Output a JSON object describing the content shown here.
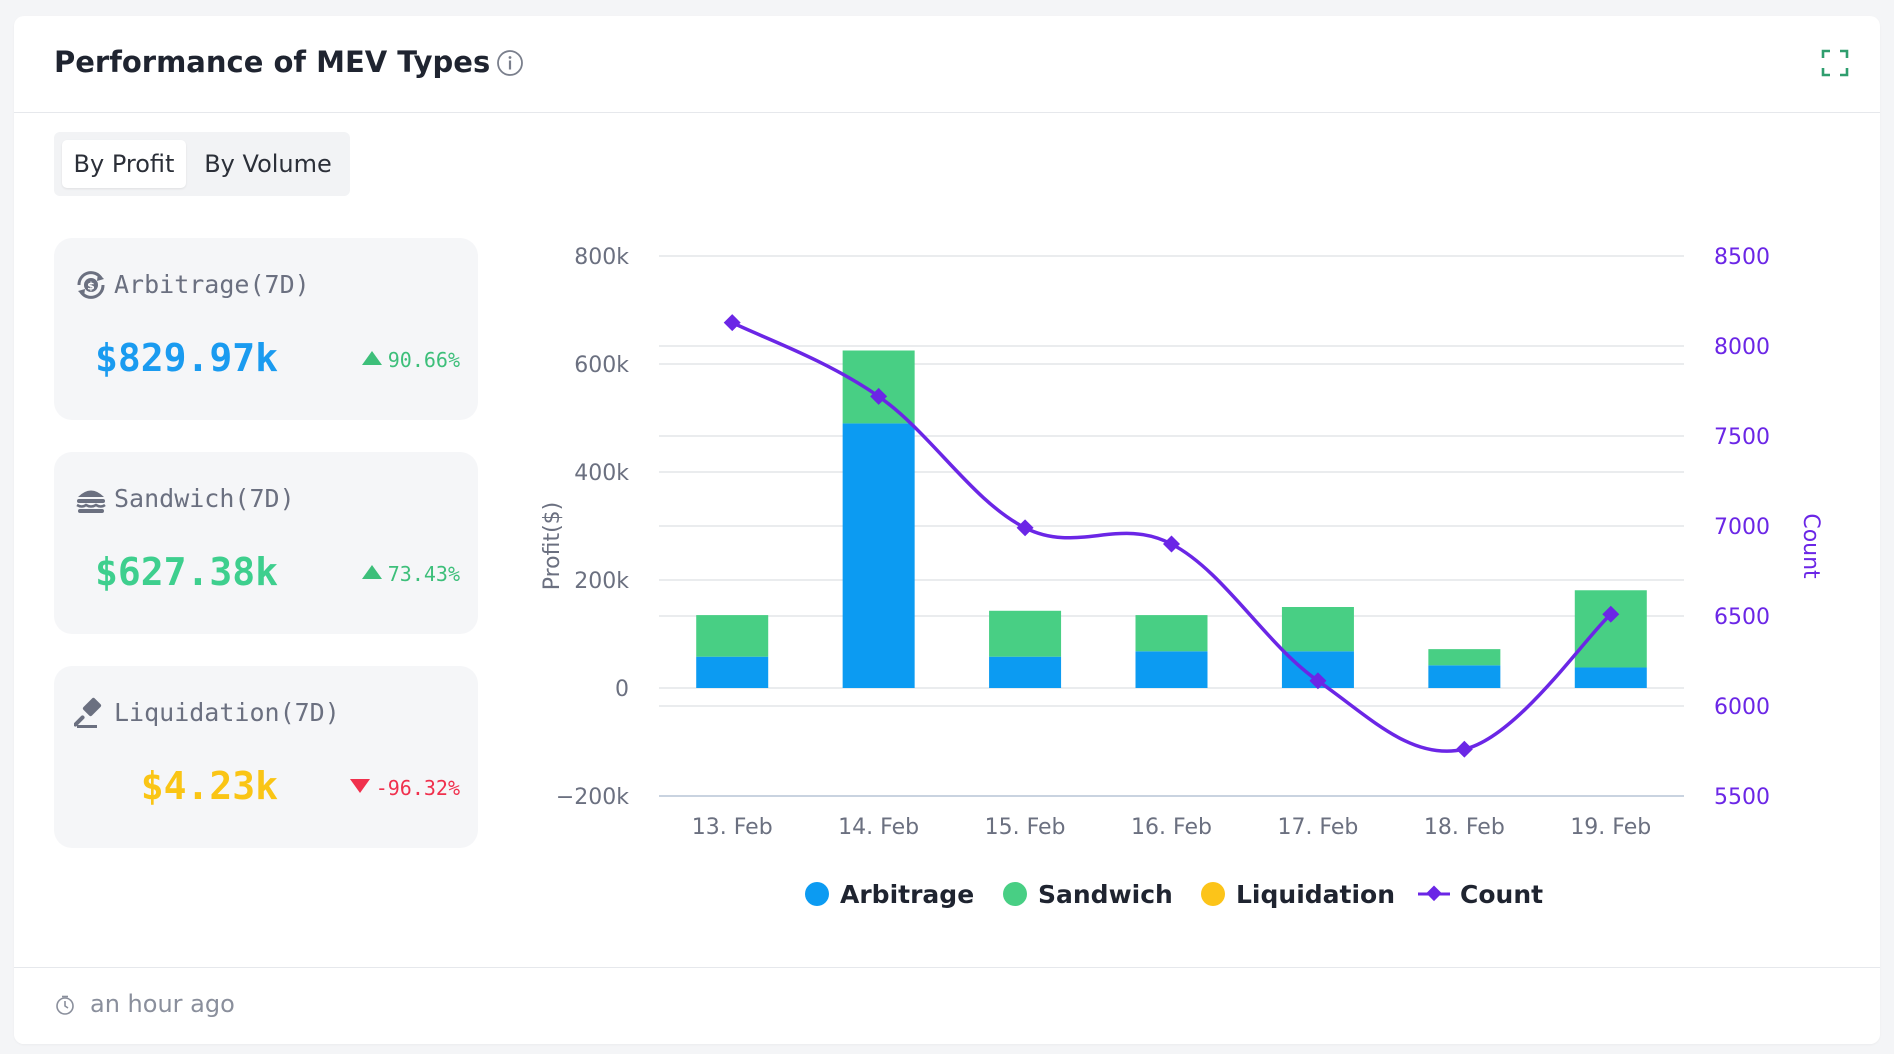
{
  "header": {
    "title": "Performance of MEV Types"
  },
  "toggle": {
    "options": [
      "By Profit",
      "By Volume"
    ],
    "selected": "By Profit"
  },
  "stats": [
    {
      "label": "Arbitrage(7D)",
      "value": "$829.97k",
      "change": "90.66%",
      "direction": "up",
      "color": "#1a9bf0",
      "icon": "arbitrage-icon"
    },
    {
      "label": "Sandwich(7D)",
      "value": "$627.38k",
      "change": "73.43%",
      "direction": "up",
      "color": "#3ecf8e",
      "icon": "sandwich-icon"
    },
    {
      "label": "Liquidation(7D)",
      "value": "$4.23k",
      "change": "-96.32%",
      "direction": "down",
      "color": "#fac515",
      "icon": "gavel-icon"
    }
  ],
  "colors": {
    "arbitrage": "#0c9bf2",
    "sandwich": "#48cf84",
    "liquidation": "#fcc419",
    "count": "#6b26e6",
    "up": "#3dbf7a",
    "down": "#f0304d"
  },
  "chart_data": {
    "type": "bar",
    "stacked": true,
    "categories": [
      "13. Feb",
      "14. Feb",
      "15. Feb",
      "16. Feb",
      "17. Feb",
      "18. Feb",
      "19. Feb"
    ],
    "series": [
      {
        "name": "Arbitrage",
        "type": "bar",
        "axis": "left",
        "values": [
          58000,
          490000,
          58000,
          68000,
          68000,
          42000,
          38000
        ]
      },
      {
        "name": "Sandwich",
        "type": "bar",
        "axis": "left",
        "values": [
          77000,
          135000,
          85000,
          67000,
          82000,
          30000,
          143000
        ]
      },
      {
        "name": "Liquidation",
        "type": "bar",
        "axis": "left",
        "values": [
          0,
          0,
          0,
          0,
          0,
          0,
          0
        ]
      },
      {
        "name": "Count",
        "type": "line",
        "axis": "right",
        "values": [
          8130,
          7720,
          6990,
          6900,
          6140,
          5760,
          6510
        ]
      }
    ],
    "ylabel": "Profit($)",
    "y2label": "Count",
    "ylim": [
      -200000,
      800000
    ],
    "y2lim": [
      5500,
      8500
    ],
    "yticks": [
      "800k",
      "600k",
      "400k",
      "200k",
      "0",
      "−200k"
    ],
    "y2ticks": [
      "8500",
      "8000",
      "7500",
      "7000",
      "6500",
      "6000",
      "5500"
    ],
    "legend": [
      "Arbitrage",
      "Sandwich",
      "Liquidation",
      "Count"
    ]
  },
  "footer": {
    "updated": "an hour ago"
  }
}
